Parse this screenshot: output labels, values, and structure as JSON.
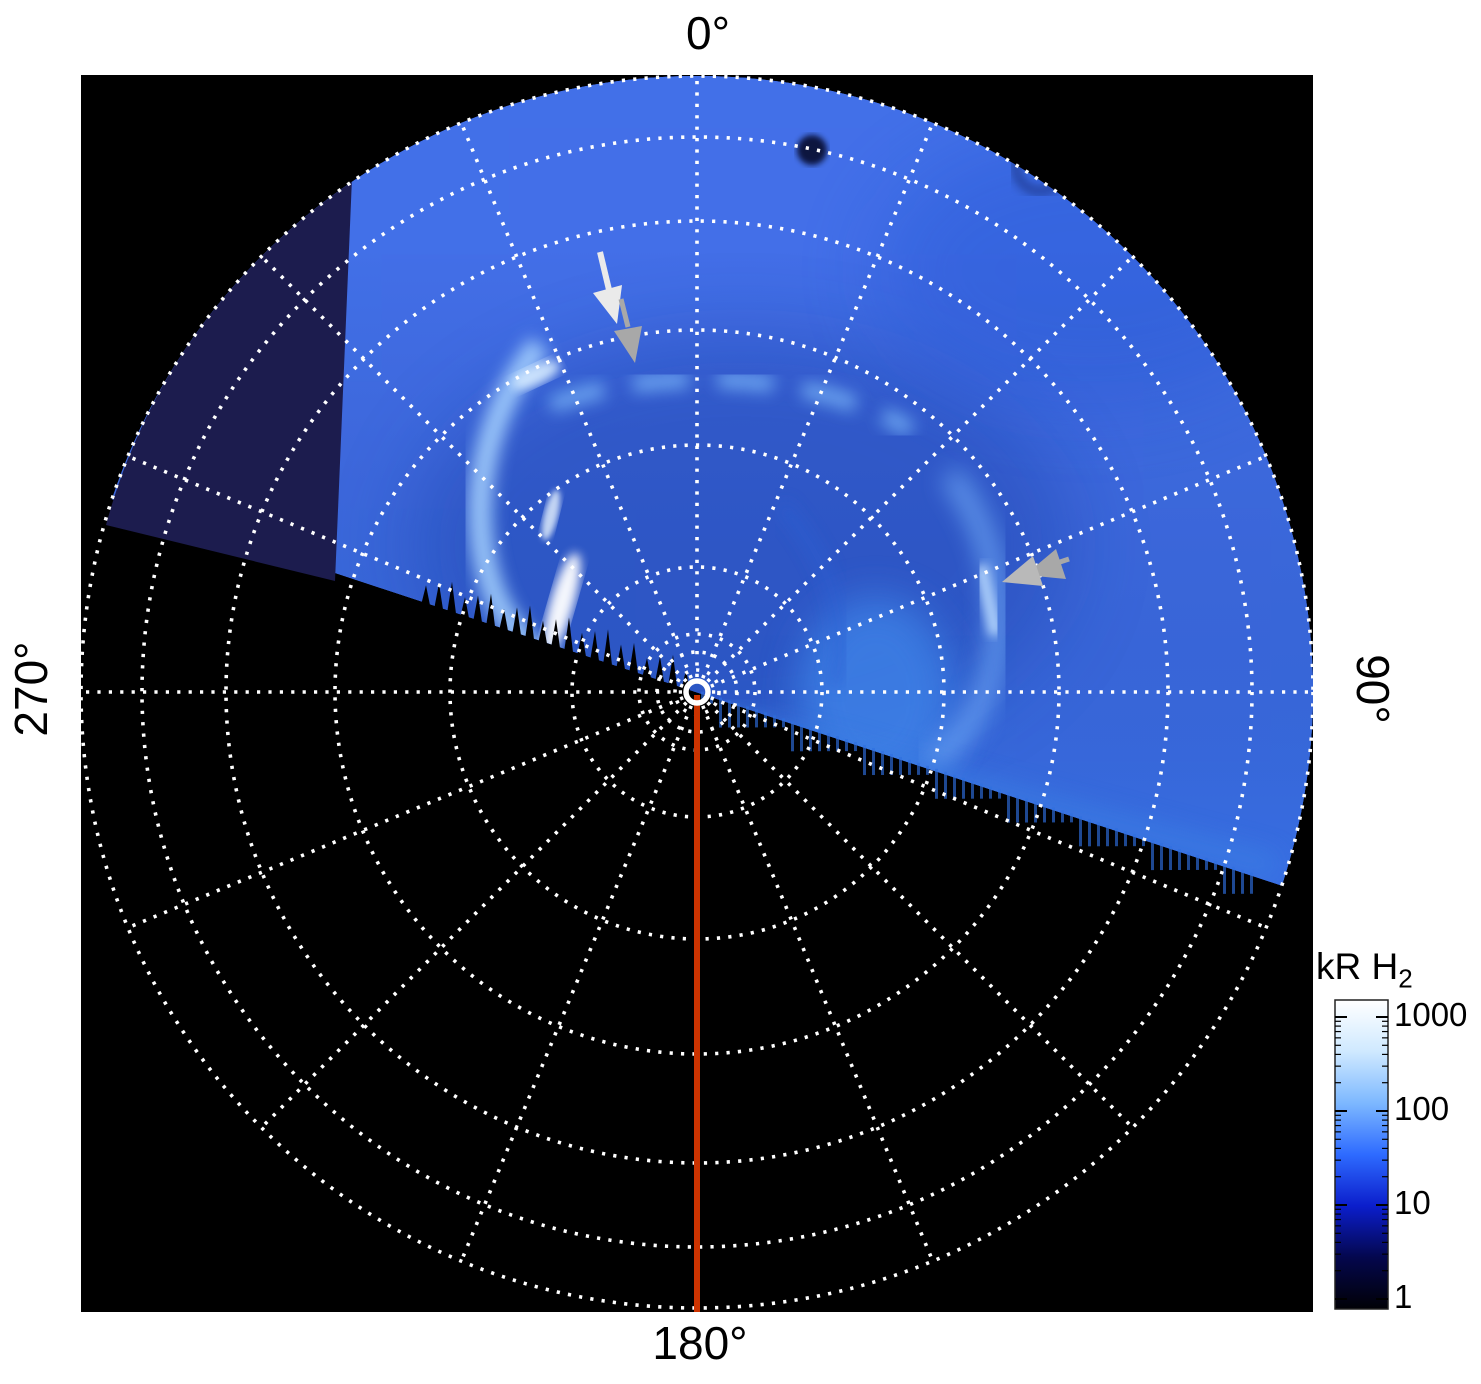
{
  "figure": {
    "angle_labels": {
      "top": "0°",
      "right": "90°",
      "bottom": "180°",
      "left": "270°"
    },
    "colorbar": {
      "title_main": "kR H",
      "title_sub": "2",
      "tick_labels": [
        "1000",
        "100",
        "10",
        "1"
      ]
    },
    "annotations": {
      "white_arrow": "white arrow pointing to auroral spot near 0° meridian",
      "gray_arrow_north": "gray arrow just below white arrow",
      "gray_arrow_east": "gray double-headed arrow pointing to auroral arc near 90°"
    },
    "colors": {
      "background": "#000000",
      "page_bg": "#ffffff",
      "grid": "#ffffff",
      "red_meridian_line": "#cc3300",
      "navy_data_gap_patch": "#1c1c4e",
      "arrow_white": "#eaeaea",
      "arrow_gray": "#a8a8a8",
      "aurora_core": "#ffffff",
      "aurora_bright": "#a8d4ff",
      "noise_blue": "#2a55e8",
      "colorbar_gradient": [
        "#ffffff",
        "#cfe9ff",
        "#7db8ff",
        "#2e6bff",
        "#0b1ecc",
        "#04074d",
        "#010106"
      ]
    }
  },
  "chart_data": {
    "type": "heatmap",
    "projection": "polar",
    "title": "",
    "angular_tick_labels": [
      "0°",
      "90°",
      "180°",
      "270°"
    ],
    "angular_ticks_deg": [
      0,
      90,
      180,
      270
    ],
    "angular_grid_spacing_deg": 22.5,
    "radial_grid": "dotted latitude circles, 5 major rings plus 3 small rings near pole",
    "grid_style": "white dotted",
    "colorbar": {
      "label": "kR H2",
      "scale": "log",
      "ticks": [
        1000,
        100,
        10,
        1
      ],
      "range_min": 1,
      "range_max": 1000,
      "orientation": "vertical",
      "position": "bottom-right"
    },
    "content_description": {
      "dayside": "blue speckled H2 emission above a diagonal terminator line",
      "nightside": "black, no emission, below terminator toward 180°",
      "main_auroral_arc": "bright white-blue arc west/northwest of pole at mid radius",
      "secondary_arc": "patchy arc north of pole and diffuse arc east of pole near 90°",
      "data_gap": "uniform dark navy sector in upper-left between 270° and 315°",
      "meridian_marker": "solid red-orange line from pole to 180° edge",
      "pole_marker": "solid white ring at projection center"
    },
    "annotations": [
      {
        "type": "arrow",
        "color": "white",
        "points_to": "bright auroral spot north-west of pole"
      },
      {
        "type": "arrow",
        "color": "gray",
        "points_to": "feature just south of white arrow tip"
      },
      {
        "type": "arrow",
        "color": "gray",
        "points_to": "auroral arc east of pole near 90°"
      }
    ]
  }
}
